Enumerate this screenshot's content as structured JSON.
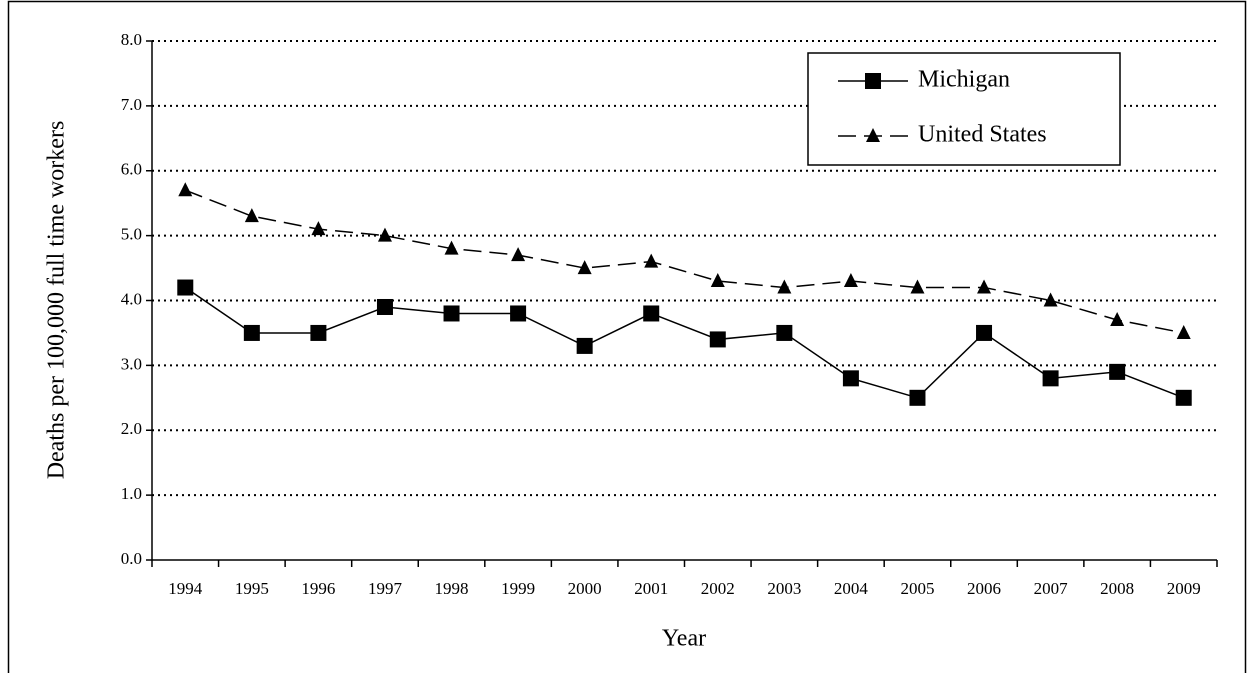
{
  "chart_data": {
    "type": "line",
    "x_label": "Year",
    "y_label": "Deaths per 100,000 full time workers",
    "categories": [
      "1994",
      "1995",
      "1996",
      "1997",
      "1998",
      "1999",
      "2000",
      "2001",
      "2002",
      "2003",
      "2004",
      "2005",
      "2006",
      "2007",
      "2008",
      "2009"
    ],
    "series": [
      {
        "name": "Michigan",
        "color": "#000000",
        "marker": "square",
        "line_style": "solid",
        "values": [
          4.2,
          3.5,
          3.5,
          3.9,
          3.8,
          3.8,
          3.3,
          3.8,
          3.4,
          3.5,
          2.8,
          2.5,
          3.5,
          2.8,
          2.9,
          2.5
        ]
      },
      {
        "name": "United States",
        "color": "#000000",
        "marker": "triangle",
        "line_style": "dashed",
        "values": [
          5.7,
          5.3,
          5.1,
          5.0,
          4.8,
          4.7,
          4.5,
          4.6,
          4.3,
          4.2,
          4.3,
          4.2,
          4.2,
          4.0,
          3.7,
          3.5
        ]
      }
    ],
    "ylim": [
      0,
      8
    ],
    "yticks": [
      {
        "value": 0,
        "label": "0.0"
      },
      {
        "value": 1,
        "label": "1.0"
      },
      {
        "value": 2,
        "label": "2.0"
      },
      {
        "value": 3,
        "label": "3.0"
      },
      {
        "value": 4,
        "label": "4.0"
      },
      {
        "value": 5,
        "label": "5.0"
      },
      {
        "value": 6,
        "label": "6.0"
      },
      {
        "value": 7,
        "label": "7.0"
      },
      {
        "value": 8,
        "label": "8.0"
      }
    ],
    "grid": true,
    "legend": "upper right"
  }
}
